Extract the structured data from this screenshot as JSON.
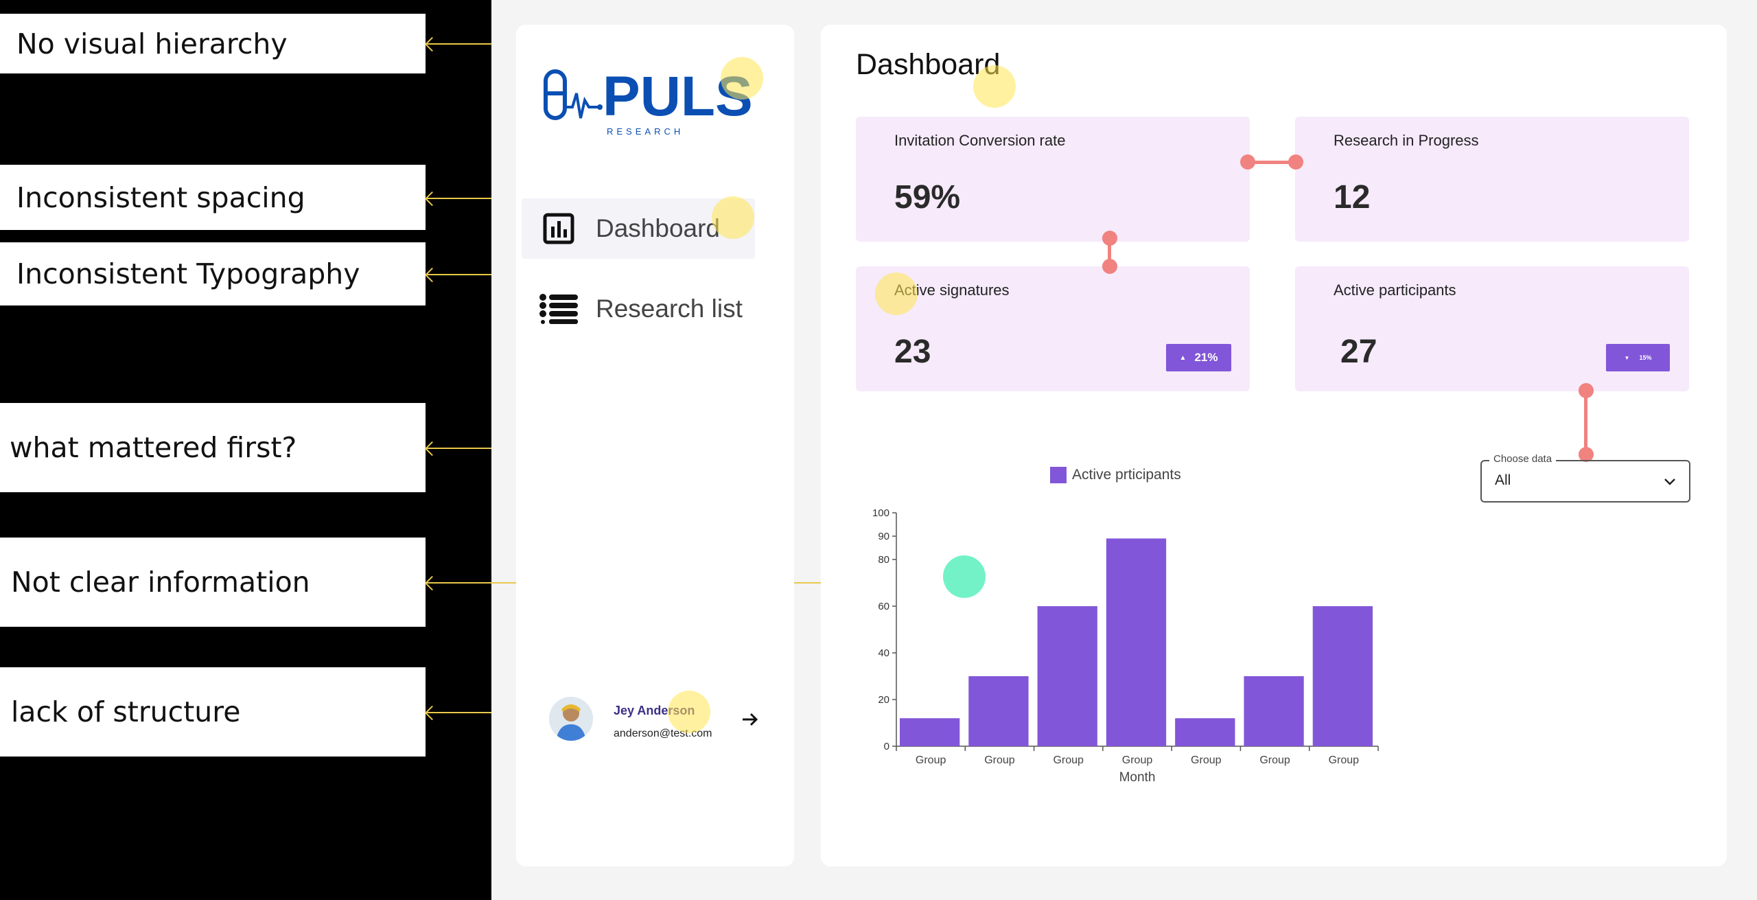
{
  "annotations": [
    {
      "text": "No visual hierarchy"
    },
    {
      "text": "Inconsistent spacing"
    },
    {
      "text": "Inconsistent Typography"
    },
    {
      "text": "what mattered first?"
    },
    {
      "text": "Not clear information"
    },
    {
      "text": "lack of structure"
    }
  ],
  "brand": {
    "name": "PULS",
    "tagline": "RESEARCH"
  },
  "sidebar": {
    "items": [
      {
        "label": "Dashboard",
        "icon": "bar-chart-icon",
        "active": true
      },
      {
        "label": "Research list",
        "icon": "list-icon",
        "active": false
      }
    ],
    "user": {
      "name": "Jey Anderson",
      "email": "anderson@test.com"
    }
  },
  "main": {
    "title": "Dashboard",
    "cards": [
      {
        "title": "Invitation Conversion rate",
        "value": "59%"
      },
      {
        "title": "Research in Progress",
        "value": "12"
      },
      {
        "title": "Active signatures",
        "value": "23",
        "badge": "21%",
        "trend": "up"
      },
      {
        "title": "Active participants",
        "value": "27",
        "badge": "15%",
        "trend": "down"
      }
    ],
    "select": {
      "label": "Choose data",
      "value": "All"
    }
  },
  "colors": {
    "accent": "#8256d8",
    "card": "#f6eafb",
    "brand": "#0b4fb3",
    "annotation": "#e9c94b",
    "spacing_marker": "#f0827f"
  },
  "chart_data": {
    "type": "bar",
    "categories": [
      "Group",
      "Group",
      "Group",
      "Group",
      "Group",
      "Group",
      "Group"
    ],
    "series": [
      {
        "name": "Active prticipants",
        "values": [
          12,
          30,
          60,
          89,
          12,
          30,
          60
        ]
      }
    ],
    "xlabel": "Month",
    "ylabel": "",
    "ylim": [
      0,
      100
    ],
    "yticks": [
      0,
      20,
      40,
      60,
      80,
      90,
      100
    ],
    "grid": false,
    "legend": "top-center"
  }
}
